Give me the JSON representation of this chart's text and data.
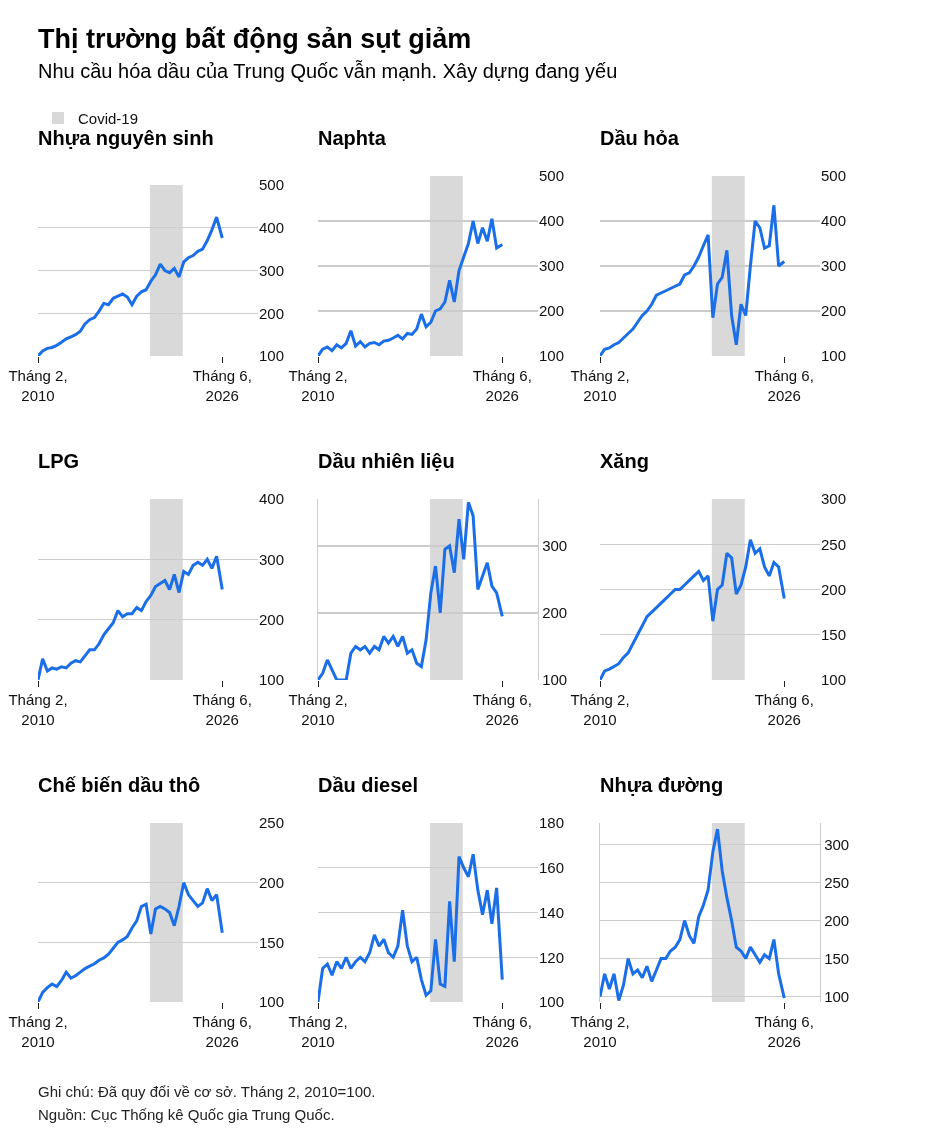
{
  "chart_data": [
    {
      "type": "other",
      "title": "Thị trường bất động sản sụt giảm",
      "subtitle": "Nhu cầu hóa dầu của Trung Quốc vẫn mạnh. Xây dựng đang yếu"
    },
    {
      "type": "line",
      "title": "Nhựa nguyên sinh",
      "legend": "top left",
      "grid": "y",
      "color": "#1a6fe8",
      "x": [
        "2010-02",
        "2010-07",
        "2010-12",
        "2011-05",
        "2011-10",
        "2012-03",
        "2012-08",
        "2013-01",
        "2013-06",
        "2013-11",
        "2014-04",
        "2014-09",
        "2015-02",
        "2015-07",
        "2015-12",
        "2016-05",
        "2016-10",
        "2017-03",
        "2017-08",
        "2018-01",
        "2018-06",
        "2018-11",
        "2019-04",
        "2019-09",
        "2020-02",
        "2020-07",
        "2020-12",
        "2021-05",
        "2021-10",
        "2022-03",
        "2022-08",
        "2023-01",
        "2023-06",
        "2023-11",
        "2024-04",
        "2024-09",
        "2025-02",
        "2025-07",
        "2025-12",
        "2026-06"
      ],
      "values": [
        100,
        112,
        118,
        120,
        125,
        132,
        140,
        145,
        150,
        158,
        175,
        185,
        190,
        205,
        223,
        220,
        235,
        240,
        245,
        238,
        220,
        240,
        250,
        255,
        275,
        290,
        315,
        300,
        295,
        305,
        285,
        320,
        330,
        335,
        345,
        350,
        370,
        395,
        425,
        376
      ],
      "xlim": [
        "2010-02",
        "2029-08"
      ],
      "xticks": [
        {
          "value": "2010-02",
          "label": "Tháng 2, 2010"
        },
        {
          "value": "2026-06",
          "label": "Tháng 6, 2026"
        }
      ],
      "ylim": [
        100,
        500
      ],
      "yticks": [
        100,
        200,
        300,
        400,
        500
      ],
      "bands": [
        {
          "axis": "x",
          "from": "2020-01",
          "to": "2022-12",
          "label": "Covid-19",
          "color": "#d9d9d9"
        }
      ]
    },
    {
      "type": "line",
      "title": "Naphta",
      "grid": "y",
      "color": "#1a6fe8",
      "x": [
        "2010-02",
        "2010-07",
        "2010-12",
        "2011-05",
        "2011-10",
        "2012-03",
        "2012-08",
        "2013-01",
        "2013-06",
        "2013-11",
        "2014-04",
        "2014-09",
        "2015-02",
        "2015-07",
        "2015-12",
        "2016-05",
        "2016-10",
        "2017-03",
        "2017-08",
        "2018-01",
        "2018-06",
        "2018-11",
        "2019-04",
        "2019-09",
        "2020-02",
        "2020-07",
        "2020-12",
        "2021-05",
        "2021-10",
        "2022-03",
        "2022-08",
        "2023-01",
        "2023-06",
        "2023-11",
        "2024-04",
        "2024-09",
        "2025-02",
        "2025-07",
        "2025-12",
        "2026-06"
      ],
      "values": [
        100,
        115,
        120,
        112,
        125,
        118,
        128,
        156,
        122,
        132,
        120,
        128,
        130,
        125,
        133,
        135,
        140,
        146,
        138,
        150,
        148,
        160,
        193,
        165,
        175,
        200,
        205,
        220,
        268,
        220,
        290,
        320,
        350,
        400,
        350,
        385,
        355,
        405,
        340,
        348
      ],
      "xlim": [
        "2010-02",
        "2029-08"
      ],
      "xticks": [
        {
          "value": "2010-02",
          "label": "Tháng 2, 2010"
        },
        {
          "value": "2026-06",
          "label": "Tháng 6, 2026"
        }
      ],
      "ylim": [
        100,
        500
      ],
      "yticks": [
        100,
        200,
        300,
        400,
        500
      ],
      "bands": [
        {
          "axis": "x",
          "from": "2020-01",
          "to": "2022-12",
          "color": "#d9d9d9"
        }
      ]
    },
    {
      "type": "line",
      "title": "Dầu hỏa",
      "grid": "y",
      "color": "#1a6fe8",
      "x": [
        "2010-02",
        "2010-07",
        "2010-12",
        "2011-05",
        "2011-10",
        "2012-03",
        "2012-08",
        "2013-01",
        "2013-06",
        "2013-11",
        "2014-04",
        "2014-09",
        "2015-02",
        "2015-07",
        "2015-12",
        "2016-05",
        "2016-10",
        "2017-03",
        "2017-08",
        "2018-01",
        "2018-06",
        "2018-11",
        "2019-04",
        "2019-09",
        "2020-02",
        "2020-07",
        "2020-12",
        "2021-05",
        "2021-10",
        "2022-03",
        "2022-08",
        "2023-01",
        "2023-06",
        "2023-11",
        "2024-04",
        "2024-09",
        "2025-02",
        "2025-07",
        "2025-12",
        "2026-06"
      ],
      "values": [
        100,
        115,
        118,
        125,
        130,
        140,
        150,
        160,
        175,
        190,
        200,
        215,
        235,
        240,
        245,
        250,
        255,
        260,
        280,
        285,
        300,
        320,
        345,
        369,
        185,
        260,
        275,
        335,
        190,
        125,
        215,
        190,
        300,
        400,
        385,
        340,
        345,
        435,
        300,
        310
      ],
      "xlim": [
        "2010-02",
        "2029-08"
      ],
      "xticks": [
        {
          "value": "2010-02",
          "label": "Tháng 2, 2010"
        },
        {
          "value": "2026-06",
          "label": "Tháng 6, 2026"
        }
      ],
      "ylim": [
        100,
        500
      ],
      "yticks": [
        100,
        200,
        300,
        400,
        500
      ],
      "bands": [
        {
          "axis": "x",
          "from": "2020-01",
          "to": "2022-12",
          "color": "#d9d9d9"
        }
      ]
    },
    {
      "type": "line",
      "title": "LPG",
      "grid": "y",
      "color": "#1a6fe8",
      "x": [
        "2010-02",
        "2010-07",
        "2010-12",
        "2011-05",
        "2011-10",
        "2012-03",
        "2012-08",
        "2013-01",
        "2013-06",
        "2013-11",
        "2014-04",
        "2014-09",
        "2015-02",
        "2015-07",
        "2015-12",
        "2016-05",
        "2016-10",
        "2017-03",
        "2017-08",
        "2018-01",
        "2018-06",
        "2018-11",
        "2019-04",
        "2019-09",
        "2020-02",
        "2020-07",
        "2020-12",
        "2021-05",
        "2021-10",
        "2022-03",
        "2022-08",
        "2023-01",
        "2023-06",
        "2023-11",
        "2024-04",
        "2024-09",
        "2025-02",
        "2025-07",
        "2025-12",
        "2026-06"
      ],
      "values": [
        100,
        135,
        115,
        120,
        118,
        122,
        120,
        128,
        132,
        130,
        140,
        150,
        150,
        160,
        175,
        185,
        195,
        215,
        205,
        210,
        210,
        220,
        215,
        230,
        240,
        255,
        260,
        265,
        250,
        275,
        245,
        280,
        275,
        290,
        295,
        290,
        300,
        285,
        305,
        250
      ],
      "xlim": [
        "2010-02",
        "2029-08"
      ],
      "xticks": [
        {
          "value": "2010-02",
          "label": "Tháng 2, 2010"
        },
        {
          "value": "2026-06",
          "label": "Tháng 6, 2026"
        }
      ],
      "ylim": [
        100,
        400
      ],
      "yticks": [
        100,
        200,
        300,
        400
      ],
      "bands": [
        {
          "axis": "x",
          "from": "2020-01",
          "to": "2022-12",
          "color": "#d9d9d9"
        }
      ]
    },
    {
      "type": "line",
      "title": "Dầu nhiên liệu",
      "grid": "y",
      "color": "#1a6fe8",
      "x": [
        "2010-02",
        "2010-07",
        "2010-12",
        "2011-05",
        "2011-10",
        "2012-03",
        "2012-08",
        "2013-01",
        "2013-06",
        "2013-11",
        "2014-04",
        "2014-09",
        "2015-02",
        "2015-07",
        "2015-12",
        "2016-05",
        "2016-10",
        "2017-03",
        "2017-08",
        "2018-01",
        "2018-06",
        "2018-11",
        "2019-04",
        "2019-09",
        "2020-02",
        "2020-07",
        "2020-12",
        "2021-05",
        "2021-10",
        "2022-03",
        "2022-08",
        "2023-01",
        "2023-06",
        "2023-11",
        "2024-04",
        "2024-09",
        "2025-02",
        "2025-07",
        "2025-12",
        "2026-06"
      ],
      "values": [
        100,
        110,
        130,
        115,
        100,
        100,
        100,
        140,
        150,
        145,
        150,
        140,
        150,
        145,
        165,
        155,
        165,
        150,
        165,
        140,
        145,
        125,
        120,
        160,
        230,
        270,
        200,
        295,
        300,
        260,
        340,
        280,
        365,
        345,
        235,
        255,
        275,
        240,
        230,
        195
      ],
      "xlim": [
        "2010-02",
        "2029-08"
      ],
      "xticks": [
        {
          "value": "2010-02",
          "label": "Tháng 2, 2010"
        },
        {
          "value": "2026-06",
          "label": "Tháng 6, 2026"
        }
      ],
      "ylim": [
        100,
        370
      ],
      "yticks": [
        100,
        200,
        300
      ],
      "bands": [
        {
          "axis": "x",
          "from": "2020-01",
          "to": "2022-12",
          "color": "#d9d9d9"
        }
      ]
    },
    {
      "type": "line",
      "title": "Xăng",
      "grid": "y",
      "color": "#1a6fe8",
      "x": [
        "2010-02",
        "2010-07",
        "2010-12",
        "2011-05",
        "2011-10",
        "2012-03",
        "2012-08",
        "2013-01",
        "2013-06",
        "2013-11",
        "2014-04",
        "2014-09",
        "2015-02",
        "2015-07",
        "2015-12",
        "2016-05",
        "2016-10",
        "2017-03",
        "2017-08",
        "2018-01",
        "2018-06",
        "2018-11",
        "2019-04",
        "2019-09",
        "2020-02",
        "2020-07",
        "2020-12",
        "2021-05",
        "2021-10",
        "2022-03",
        "2022-08",
        "2023-01",
        "2023-06",
        "2023-11",
        "2024-04",
        "2024-09",
        "2025-02",
        "2025-07",
        "2025-12",
        "2026-06"
      ],
      "values": [
        100,
        110,
        112,
        115,
        118,
        125,
        130,
        140,
        150,
        160,
        170,
        175,
        180,
        185,
        190,
        195,
        200,
        200,
        205,
        210,
        215,
        220,
        210,
        215,
        165,
        200,
        205,
        240,
        235,
        195,
        205,
        225,
        255,
        240,
        245,
        225,
        215,
        230,
        225,
        190
      ],
      "xlim": [
        "2010-02",
        "2029-08"
      ],
      "xticks": [
        {
          "value": "2010-02",
          "label": "Tháng 2, 2010"
        },
        {
          "value": "2026-06",
          "label": "Tháng 6, 2026"
        }
      ],
      "ylim": [
        100,
        300
      ],
      "yticks": [
        100,
        150,
        200,
        250,
        300
      ],
      "bands": [
        {
          "axis": "x",
          "from": "2020-01",
          "to": "2022-12",
          "color": "#d9d9d9"
        }
      ]
    },
    {
      "type": "line",
      "title": "Chế biến dầu thô",
      "grid": "y",
      "color": "#1a6fe8",
      "x": [
        "2010-02",
        "2010-07",
        "2010-12",
        "2011-05",
        "2011-10",
        "2012-03",
        "2012-08",
        "2013-01",
        "2013-06",
        "2013-11",
        "2014-04",
        "2014-09",
        "2015-02",
        "2015-07",
        "2015-12",
        "2016-05",
        "2016-10",
        "2017-03",
        "2017-08",
        "2018-01",
        "2018-06",
        "2018-11",
        "2019-04",
        "2019-09",
        "2020-02",
        "2020-07",
        "2020-12",
        "2021-05",
        "2021-10",
        "2022-03",
        "2022-08",
        "2023-01",
        "2023-06",
        "2023-11",
        "2024-04",
        "2024-09",
        "2025-02",
        "2025-07",
        "2025-12",
        "2026-06"
      ],
      "values": [
        100,
        108,
        112,
        115,
        113,
        118,
        125,
        120,
        122,
        125,
        128,
        130,
        132,
        135,
        137,
        140,
        145,
        150,
        152,
        155,
        162,
        168,
        180,
        182,
        157,
        178,
        180,
        178,
        175,
        164,
        180,
        200,
        190,
        185,
        180,
        183,
        195,
        185,
        190,
        158
      ],
      "xlim": [
        "2010-02",
        "2029-08"
      ],
      "xticks": [
        {
          "value": "2010-02",
          "label": "Tháng 2, 2010"
        },
        {
          "value": "2026-06",
          "label": "Tháng 6, 2026"
        }
      ],
      "ylim": [
        100,
        250
      ],
      "yticks": [
        100,
        150,
        200,
        250
      ],
      "bands": [
        {
          "axis": "x",
          "from": "2020-01",
          "to": "2022-12",
          "color": "#d9d9d9"
        }
      ]
    },
    {
      "type": "line",
      "title": "Dầu diesel",
      "grid": "y",
      "color": "#1a6fe8",
      "x": [
        "2010-02",
        "2010-07",
        "2010-12",
        "2011-05",
        "2011-10",
        "2012-03",
        "2012-08",
        "2013-01",
        "2013-06",
        "2013-11",
        "2014-04",
        "2014-09",
        "2015-02",
        "2015-07",
        "2015-12",
        "2016-05",
        "2016-10",
        "2017-03",
        "2017-08",
        "2018-01",
        "2018-06",
        "2018-11",
        "2019-04",
        "2019-09",
        "2020-02",
        "2020-07",
        "2020-12",
        "2021-05",
        "2021-10",
        "2022-03",
        "2022-08",
        "2023-01",
        "2023-06",
        "2023-11",
        "2024-04",
        "2024-09",
        "2025-02",
        "2025-07",
        "2025-12",
        "2026-06"
      ],
      "values": [
        100,
        115,
        117,
        112,
        118,
        115,
        120,
        115,
        118,
        120,
        118,
        122,
        130,
        125,
        128,
        122,
        120,
        125,
        141,
        125,
        118,
        120,
        110,
        103,
        105,
        128,
        108,
        107,
        145,
        118,
        165,
        160,
        156,
        166,
        150,
        139,
        150,
        135,
        151,
        110
      ],
      "xlim": [
        "2010-02",
        "2029-08"
      ],
      "xticks": [
        {
          "value": "2010-02",
          "label": "Tháng 2, 2010"
        },
        {
          "value": "2026-06",
          "label": "Tháng 6, 2026"
        }
      ],
      "ylim": [
        100,
        180
      ],
      "yticks": [
        100,
        120,
        140,
        160,
        180
      ],
      "bands": [
        {
          "axis": "x",
          "from": "2020-01",
          "to": "2022-12",
          "color": "#d9d9d9"
        }
      ]
    },
    {
      "type": "line",
      "title": "Nhựa đường",
      "grid": "y",
      "color": "#1a6fe8",
      "x": [
        "2010-02",
        "2010-07",
        "2010-12",
        "2011-05",
        "2011-10",
        "2012-03",
        "2012-08",
        "2013-01",
        "2013-06",
        "2013-11",
        "2014-04",
        "2014-09",
        "2015-02",
        "2015-07",
        "2015-12",
        "2016-05",
        "2016-10",
        "2017-03",
        "2017-08",
        "2018-01",
        "2018-06",
        "2018-11",
        "2019-04",
        "2019-09",
        "2020-02",
        "2020-07",
        "2020-12",
        "2021-05",
        "2021-10",
        "2022-03",
        "2022-08",
        "2023-01",
        "2023-06",
        "2023-11",
        "2024-04",
        "2024-09",
        "2025-02",
        "2025-07",
        "2025-12",
        "2026-06"
      ],
      "values": [
        100,
        130,
        110,
        130,
        95,
        115,
        150,
        130,
        135,
        125,
        140,
        120,
        135,
        150,
        150,
        160,
        165,
        175,
        200,
        180,
        170,
        205,
        220,
        240,
        290,
        320,
        265,
        230,
        200,
        165,
        160,
        150,
        165,
        155,
        145,
        155,
        150,
        175,
        130,
        98
      ],
      "xlim": [
        "2010-02",
        "2029-08"
      ],
      "xticks": [
        {
          "value": "2010-02",
          "label": "Tháng 2, 2010"
        },
        {
          "value": "2026-06",
          "label": "Tháng 6, 2026"
        }
      ],
      "ylim": [
        93,
        328
      ],
      "yticks": [
        100,
        150,
        200,
        250,
        300
      ],
      "bands": [
        {
          "axis": "x",
          "from": "2020-01",
          "to": "2022-12",
          "color": "#d9d9d9"
        }
      ]
    },
    {
      "type": "other",
      "annotations": [
        "Ghi chú: Đã quy đổi về cơ sở. Tháng 2, 2010=100.",
        "Nguồn: Cục Thống kê Quốc gia Trung Quốc."
      ]
    }
  ]
}
